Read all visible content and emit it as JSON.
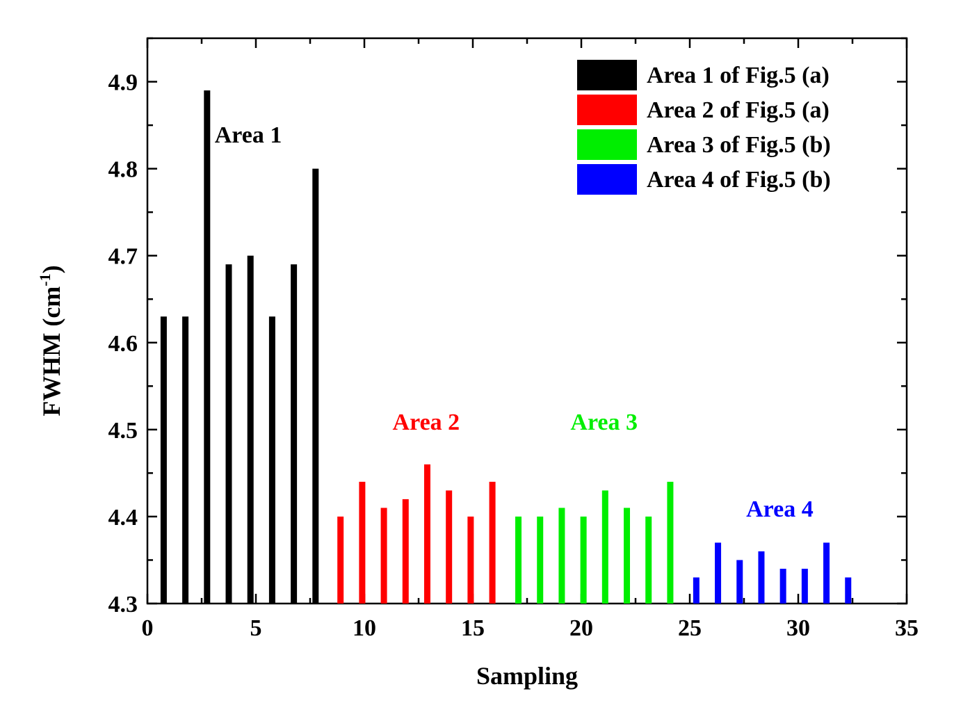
{
  "chart_data": {
    "type": "bar",
    "xlabel": "Sampling",
    "ylabel_main": "FWHM (cm",
    "ylabel_sup": "-1",
    "ylabel_close": ")",
    "xlim": [
      0,
      35
    ],
    "ylim": [
      4.3,
      4.95
    ],
    "baseline": 4.3,
    "x_ticks": [
      0,
      5,
      10,
      15,
      20,
      25,
      30,
      35
    ],
    "x_tick_labels": [
      "0",
      "5",
      "10",
      "15",
      "20",
      "25",
      "30",
      "35"
    ],
    "y_ticks": [
      4.3,
      4.4,
      4.5,
      4.6,
      4.7,
      4.8,
      4.9
    ],
    "y_tick_labels": [
      "4.3",
      "4.4",
      "4.5",
      "4.6",
      "4.7",
      "4.8",
      "4.9"
    ],
    "legend_position": "top-right",
    "series": [
      {
        "name": "Area 1 of Fig.5 (a)",
        "color": "#000000",
        "x": [
          0.75,
          1.75,
          2.75,
          3.75,
          4.75,
          5.75,
          6.75,
          7.75
        ],
        "values": [
          4.63,
          4.63,
          4.89,
          4.69,
          4.7,
          4.63,
          4.69,
          4.8
        ],
        "annotation": "Area 1",
        "annotation_anchor": [
          3.1,
          4.83
        ]
      },
      {
        "name": "Area 2 of Fig.5 (a)",
        "color": "#ff0000",
        "x": [
          8.9,
          9.9,
          10.9,
          11.9,
          12.9,
          13.9,
          14.9,
          15.9
        ],
        "values": [
          4.4,
          4.44,
          4.41,
          4.42,
          4.46,
          4.43,
          4.4,
          4.44
        ],
        "annotation": "Area 2",
        "annotation_anchor": [
          11.3,
          4.5
        ]
      },
      {
        "name": "Area 3 of Fig.5 (b)",
        "color": "#00ee00",
        "x": [
          17.1,
          18.1,
          19.1,
          20.1,
          21.1,
          22.1,
          23.1,
          24.1
        ],
        "values": [
          4.4,
          4.4,
          4.41,
          4.4,
          4.43,
          4.41,
          4.4,
          4.44
        ],
        "annotation": "Area 3",
        "annotation_anchor": [
          19.5,
          4.5
        ]
      },
      {
        "name": "Area 4 of Fig.5 (b)",
        "color": "#0000ff",
        "x": [
          25.3,
          26.3,
          27.3,
          28.3,
          29.3,
          30.3,
          31.3,
          32.3
        ],
        "values": [
          4.33,
          4.37,
          4.35,
          4.36,
          4.34,
          4.34,
          4.37,
          4.33
        ],
        "annotation": "Area 4",
        "annotation_anchor": [
          27.6,
          4.4
        ]
      }
    ]
  }
}
